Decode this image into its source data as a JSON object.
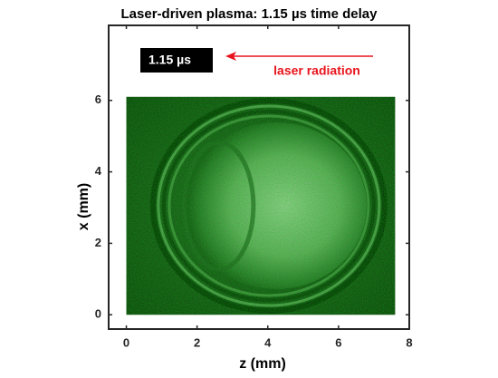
{
  "chart_data": {
    "type": "image",
    "title": "Laser-driven plasma: 1.15 µs time delay",
    "xlabel": "z (mm)",
    "ylabel": "x (mm)",
    "xlim": [
      -0.5,
      8
    ],
    "ylim": [
      -0.4,
      8.1
    ],
    "xticks": [
      0,
      2,
      4,
      6,
      8
    ],
    "yticks": [
      0,
      2,
      4,
      6
    ],
    "extent": [
      0,
      7.6,
      0,
      6.1
    ],
    "annotations": [
      {
        "text": "1.15 µs",
        "color": "#ffffff",
        "background": "#000000"
      },
      {
        "text": "laser radiation",
        "color": "#e8141c"
      }
    ]
  }
}
